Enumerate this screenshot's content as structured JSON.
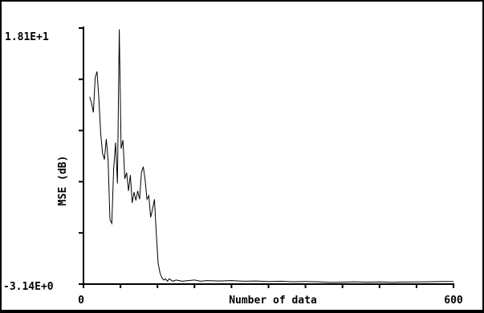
{
  "chart_data": {
    "type": "line",
    "xlabel": "Number of data",
    "ylabel": "MSE (dB)",
    "xlim": [
      0,
      600
    ],
    "ylim": [
      -3.14,
      18.1
    ],
    "x_tick_labels": [
      "0",
      "600"
    ],
    "y_tick_labels": [
      "1.81E+1",
      "-3.14E+0"
    ],
    "grid": false,
    "series": [
      {
        "x": [
          10,
          13,
          16,
          19,
          22,
          25,
          28,
          31,
          34,
          37,
          40,
          43,
          46,
          49,
          52,
          55,
          58,
          61,
          64,
          67,
          70,
          73,
          76,
          79,
          82,
          85,
          88,
          91,
          94,
          97,
          100,
          103,
          106,
          109,
          112,
          115,
          118,
          121,
          124,
          127,
          130,
          133,
          136,
          139,
          142,
          145,
          150,
          155,
          160,
          170,
          180,
          190,
          200,
          220,
          240,
          260,
          280,
          300,
          320,
          340,
          360,
          380,
          400,
          420,
          440,
          460,
          480,
          500,
          520,
          540,
          560,
          580,
          595,
          600
        ],
        "y": [
          12.4,
          11.9,
          11.1,
          14.0,
          14.5,
          12.2,
          9.3,
          7.7,
          7.2,
          8.9,
          7.1,
          2.2,
          1.9,
          6.4,
          8.6,
          5.2,
          18.0,
          8.1,
          8.8,
          5.6,
          6.1,
          4.6,
          5.9,
          3.6,
          4.5,
          3.8,
          4.6,
          3.9,
          6.1,
          6.6,
          5.5,
          3.9,
          4.2,
          2.4,
          3.1,
          3.9,
          1.1,
          -1.4,
          -2.2,
          -2.6,
          -2.8,
          -2.7,
          -2.9,
          -2.7,
          -2.8,
          -2.9,
          -2.8,
          -2.85,
          -2.9,
          -2.85,
          -2.8,
          -2.9,
          -2.85,
          -2.88,
          -2.85,
          -2.9,
          -2.88,
          -2.92,
          -2.9,
          -2.95,
          -2.92,
          -2.95,
          -3.0,
          -2.98,
          -2.95,
          -2.98,
          -2.96,
          -2.99,
          -2.97,
          -2.96,
          -2.95,
          -2.93,
          -2.92,
          -2.92
        ]
      }
    ]
  }
}
